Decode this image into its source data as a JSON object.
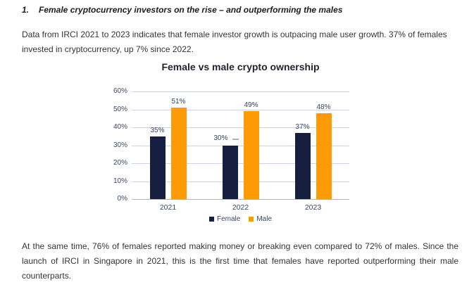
{
  "document": {
    "heading": {
      "number": "1.",
      "text": "Female cryptocurrency investors on the rise – and outperforming the males"
    },
    "paragraph1": "Data from IRCI 2021 to 2023 indicates that female investor growth is outpacing male user growth. 37% of females invested in cryptocurrency, up 7% since 2022.",
    "paragraph2": "At the same time, 76% of females reported making money or breaking even compared to 72% of males. Since the launch of IRCI in Singapore in 2021, this is the first time that females have reported outperforming their male counterparts."
  },
  "chart_data": {
    "type": "bar",
    "title": "Female vs male crypto ownership",
    "categories": [
      "2021",
      "2022",
      "2023"
    ],
    "series": [
      {
        "name": "Female",
        "color": "#161F3F",
        "values": [
          35,
          30,
          37
        ],
        "labels": [
          "35%",
          "30%",
          "37%"
        ],
        "label_placement": [
          "above",
          "left-with-leader",
          "above"
        ]
      },
      {
        "name": "Male",
        "color": "#FC9B06",
        "values": [
          51,
          49,
          48
        ],
        "labels": [
          "51%",
          "49%",
          "48%"
        ],
        "label_placement": [
          "above",
          "above",
          "above"
        ]
      }
    ],
    "ylim": [
      0,
      60
    ],
    "ytick_step": 10,
    "ytick_labels": [
      "0%",
      "10%",
      "20%",
      "30%",
      "40%",
      "50%",
      "60%"
    ],
    "grid": true,
    "legend_position": "bottom",
    "colors": {
      "gridline": "#ccd4ec",
      "axis_line": "#a7b3d9",
      "axis_text": "#3b4668",
      "leader_line": "#b1b1b1"
    }
  }
}
